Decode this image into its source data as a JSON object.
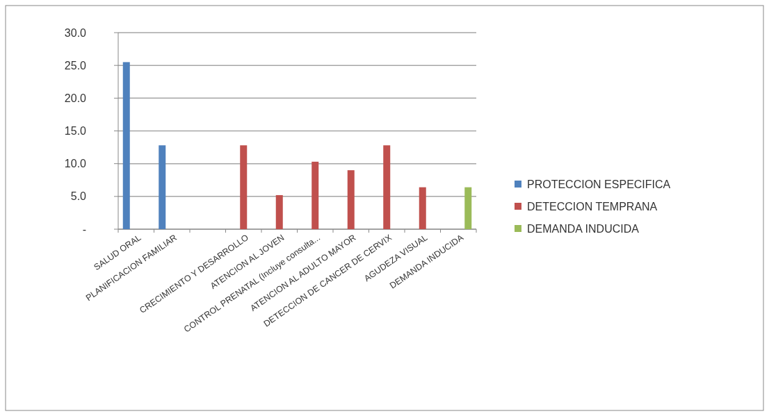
{
  "chart_data": {
    "type": "bar",
    "categories": [
      "SALUD ORAL",
      "PLANIFICACION FAMILIAR",
      null,
      "CRECIMIENTO Y DESARROLLO",
      "ATENCION AL JOVEN",
      "CONTROL PRENATAL (Incluye consulta...",
      "ATENCION AL ADULTO MAYOR",
      "DETECCION DE CANCER DE CERVIX",
      "AGUDEZA VISUAL",
      "DEMANDA INDUCIDA"
    ],
    "series": [
      {
        "name": "PROTECCION ESPECIFICA",
        "color": "#4f81bd",
        "values": [
          25.5,
          12.8,
          null,
          null,
          null,
          null,
          null,
          null,
          null,
          null
        ]
      },
      {
        "name": "DETECCION TEMPRANA",
        "color": "#c0504d",
        "values": [
          null,
          null,
          null,
          12.8,
          5.2,
          10.3,
          9.0,
          12.8,
          6.4,
          null
        ]
      },
      {
        "name": "DEMANDA INDUCIDA",
        "color": "#9bbb59",
        "values": [
          null,
          null,
          null,
          null,
          null,
          null,
          null,
          null,
          null,
          6.4
        ]
      }
    ],
    "ylim": [
      0,
      30
    ],
    "yticks": [
      {
        "value": 0,
        "label": "-"
      },
      {
        "value": 5,
        "label": "5.0"
      },
      {
        "value": 10,
        "label": "10.0"
      },
      {
        "value": 15,
        "label": "15.0"
      },
      {
        "value": 20,
        "label": "20.0"
      },
      {
        "value": 25,
        "label": "25.0"
      },
      {
        "value": 30,
        "label": "30.0"
      }
    ],
    "grid": "y",
    "legend": "right"
  }
}
